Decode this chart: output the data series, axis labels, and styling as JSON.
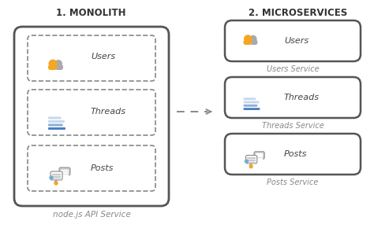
{
  "title_left": "1. MONOLITH",
  "title_right": "2. MICROSERVICES",
  "monolith_label": "node.js API Service",
  "bg_color": "#ffffff",
  "box_edge": "#555555",
  "dash_edge": "#888888",
  "title_color": "#333333",
  "sub_color": "#888888",
  "label_color": "#444444",
  "orange": "#F5A623",
  "blue_dark": "#4A7FC1",
  "blue_mid": "#8BAFD4",
  "blue_light": "#C5D9EC",
  "gray_icon": "#AAAAAA",
  "gray_bubble": "#CCCCCC",
  "blue_dot": "#6BAED6",
  "arrow_color": "#888888"
}
